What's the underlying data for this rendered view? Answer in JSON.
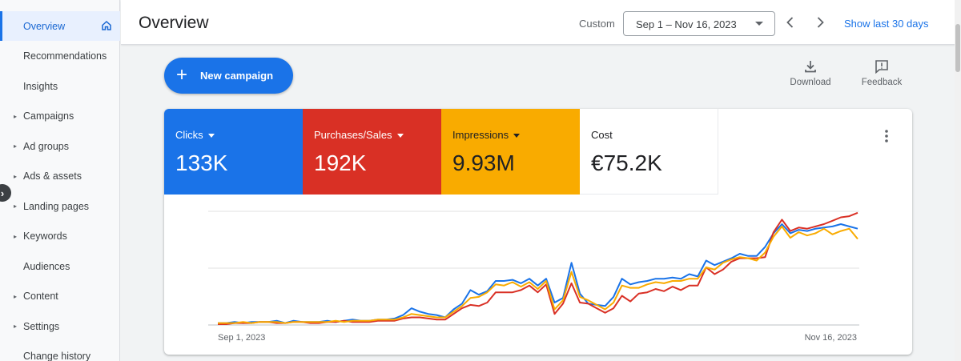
{
  "sidebar": {
    "items": [
      {
        "label": "Overview",
        "active": true,
        "caret": false
      },
      {
        "label": "Recommendations",
        "active": false,
        "caret": false
      },
      {
        "label": "Insights",
        "active": false,
        "caret": false
      },
      {
        "label": "Campaigns",
        "active": false,
        "caret": true
      },
      {
        "label": "Ad groups",
        "active": false,
        "caret": true
      },
      {
        "label": "Ads & assets",
        "active": false,
        "caret": true
      },
      {
        "label": "Landing pages",
        "active": false,
        "caret": true
      },
      {
        "label": "Keywords",
        "active": false,
        "caret": true
      },
      {
        "label": "Audiences",
        "active": false,
        "caret": false
      },
      {
        "label": "Content",
        "active": false,
        "caret": true
      },
      {
        "label": "Settings",
        "active": false,
        "caret": true
      },
      {
        "label": "Change history",
        "active": false,
        "caret": false
      }
    ]
  },
  "header": {
    "title": "Overview",
    "custom_label": "Custom",
    "date_range": "Sep 1 – Nov 16, 2023",
    "show_last": "Show last 30 days"
  },
  "toolbar": {
    "new_campaign": "New campaign",
    "download": "Download",
    "feedback": "Feedback"
  },
  "metrics": [
    {
      "name": "Clicks",
      "value": "133K",
      "color": "#1a73e8"
    },
    {
      "name": "Purchases/Sales",
      "value": "192K",
      "color": "#d93025"
    },
    {
      "name": "Impressions",
      "value": "9.93M",
      "color": "#f9ab00"
    },
    {
      "name": "Cost",
      "value": "€75.2K",
      "color": "#ffffff"
    }
  ],
  "chart_data": {
    "type": "line",
    "x_start": "Sep 1, 2023",
    "x_end": "Nov 16, 2023",
    "y_range": [
      0,
      1
    ],
    "gridlines": 3,
    "series": [
      {
        "name": "Clicks",
        "color": "#1a73e8",
        "values": [
          0.01,
          0.01,
          0.02,
          0.01,
          0.02,
          0.02,
          0.02,
          0.03,
          0.01,
          0.03,
          0.02,
          0.02,
          0.02,
          0.03,
          0.02,
          0.03,
          0.04,
          0.03,
          0.03,
          0.04,
          0.04,
          0.05,
          0.08,
          0.14,
          0.11,
          0.09,
          0.08,
          0.06,
          0.13,
          0.18,
          0.3,
          0.26,
          0.29,
          0.38,
          0.38,
          0.39,
          0.36,
          0.4,
          0.34,
          0.4,
          0.19,
          0.23,
          0.54,
          0.27,
          0.18,
          0.17,
          0.16,
          0.24,
          0.4,
          0.35,
          0.37,
          0.38,
          0.4,
          0.4,
          0.41,
          0.4,
          0.44,
          0.42,
          0.56,
          0.52,
          0.55,
          0.58,
          0.62,
          0.6,
          0.6,
          0.68,
          0.8,
          0.88,
          0.8,
          0.83,
          0.82,
          0.84,
          0.85,
          0.86,
          0.88,
          0.86,
          0.84
        ]
      },
      {
        "name": "Purchases/Sales",
        "color": "#d93025",
        "values": [
          0.0,
          0.0,
          0.01,
          0.01,
          0.01,
          0.02,
          0.02,
          0.01,
          0.01,
          0.02,
          0.02,
          0.01,
          0.01,
          0.02,
          0.02,
          0.03,
          0.02,
          0.02,
          0.02,
          0.03,
          0.03,
          0.03,
          0.05,
          0.06,
          0.06,
          0.05,
          0.04,
          0.04,
          0.09,
          0.14,
          0.17,
          0.16,
          0.19,
          0.28,
          0.28,
          0.28,
          0.3,
          0.34,
          0.28,
          0.35,
          0.09,
          0.18,
          0.36,
          0.19,
          0.18,
          0.14,
          0.1,
          0.14,
          0.25,
          0.2,
          0.27,
          0.28,
          0.31,
          0.29,
          0.33,
          0.3,
          0.34,
          0.34,
          0.5,
          0.44,
          0.48,
          0.55,
          0.58,
          0.58,
          0.58,
          0.59,
          0.81,
          0.92,
          0.82,
          0.85,
          0.84,
          0.86,
          0.88,
          0.91,
          0.94,
          0.95,
          0.98
        ]
      },
      {
        "name": "Impressions",
        "color": "#f9ab00",
        "values": [
          0.01,
          0.01,
          0.01,
          0.02,
          0.01,
          0.02,
          0.02,
          0.02,
          0.01,
          0.02,
          0.02,
          0.02,
          0.02,
          0.02,
          0.03,
          0.02,
          0.03,
          0.03,
          0.03,
          0.04,
          0.04,
          0.04,
          0.06,
          0.09,
          0.08,
          0.07,
          0.06,
          0.06,
          0.11,
          0.16,
          0.23,
          0.24,
          0.28,
          0.35,
          0.34,
          0.37,
          0.33,
          0.37,
          0.31,
          0.38,
          0.13,
          0.21,
          0.46,
          0.24,
          0.21,
          0.17,
          0.13,
          0.19,
          0.34,
          0.32,
          0.32,
          0.35,
          0.37,
          0.36,
          0.38,
          0.38,
          0.4,
          0.4,
          0.5,
          0.48,
          0.54,
          0.57,
          0.59,
          0.58,
          0.56,
          0.63,
          0.77,
          0.86,
          0.76,
          0.81,
          0.78,
          0.8,
          0.84,
          0.79,
          0.82,
          0.84,
          0.75
        ]
      }
    ]
  }
}
